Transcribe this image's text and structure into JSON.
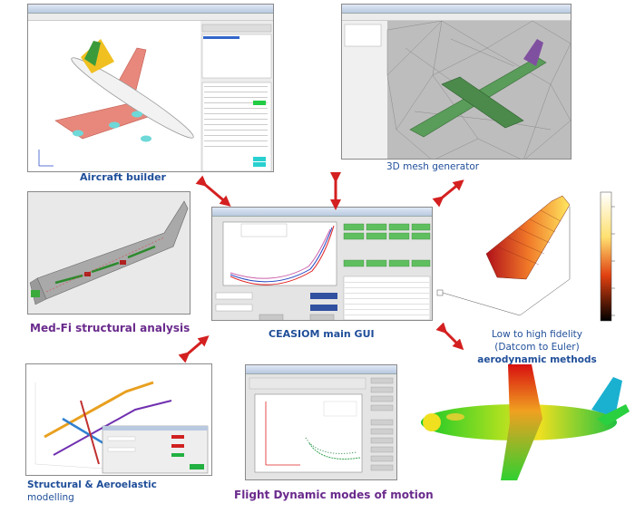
{
  "captions": {
    "aircraft_builder": "Aircraft builder",
    "mesh_generator": "3D mesh generator",
    "structural_analysis": "Med-Fi structural analysis",
    "main_gui": "CEASIOM main GUI",
    "aero_line1": "Low to high fidelity",
    "aero_line2": "(Datcom to Euler)",
    "aero_line3": "aerodynamic methods",
    "aeroelastic_line1": "Structural & Aeroelastic",
    "aeroelastic_line2": "modelling",
    "flight_dynamics": "Flight Dynamic modes of motion"
  },
  "colors": {
    "caption_blue": "#1f4e99",
    "caption_purple": "#6a2b8c",
    "arrow_red": "#d42020"
  },
  "icons": [
    "double-arrow-icon"
  ]
}
